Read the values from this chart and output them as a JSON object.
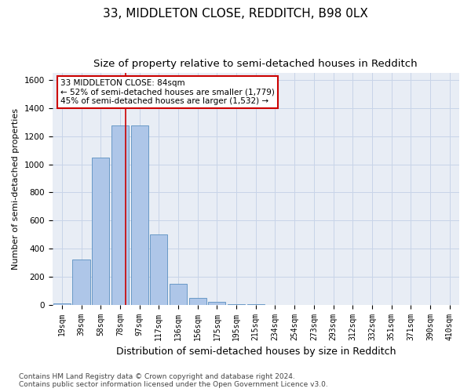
{
  "title1": "33, MIDDLETON CLOSE, REDDITCH, B98 0LX",
  "title2": "Size of property relative to semi-detached houses in Redditch",
  "xlabel": "Distribution of semi-detached houses by size in Redditch",
  "ylabel": "Number of semi-detached properties",
  "footnote": "Contains HM Land Registry data © Crown copyright and database right 2024.\nContains public sector information licensed under the Open Government Licence v3.0.",
  "categories": [
    "19sqm",
    "39sqm",
    "58sqm",
    "78sqm",
    "97sqm",
    "117sqm",
    "136sqm",
    "156sqm",
    "175sqm",
    "195sqm",
    "215sqm",
    "234sqm",
    "254sqm",
    "273sqm",
    "293sqm",
    "312sqm",
    "332sqm",
    "351sqm",
    "371sqm",
    "390sqm",
    "410sqm"
  ],
  "values": [
    10,
    320,
    1050,
    1280,
    1280,
    500,
    150,
    50,
    20,
    5,
    2,
    0,
    0,
    0,
    0,
    0,
    0,
    0,
    0,
    0,
    0
  ],
  "bar_color": "#aec6e8",
  "bar_edge_color": "#5a8fc0",
  "annotation_text": "33 MIDDLETON CLOSE: 84sqm\n← 52% of semi-detached houses are smaller (1,779)\n45% of semi-detached houses are larger (1,532) →",
  "annotation_box_color": "#ffffff",
  "annotation_box_edge": "#cc0000",
  "vline_color": "#cc0000",
  "ylim": [
    0,
    1650
  ],
  "yticks": [
    0,
    200,
    400,
    600,
    800,
    1000,
    1200,
    1400,
    1600
  ],
  "grid_color": "#c8d4e8",
  "bg_color": "#e8edf5",
  "title1_fontsize": 11,
  "title2_fontsize": 9.5,
  "xlabel_fontsize": 9,
  "ylabel_fontsize": 8,
  "footnote_fontsize": 6.5,
  "vline_x_index": 3.3
}
